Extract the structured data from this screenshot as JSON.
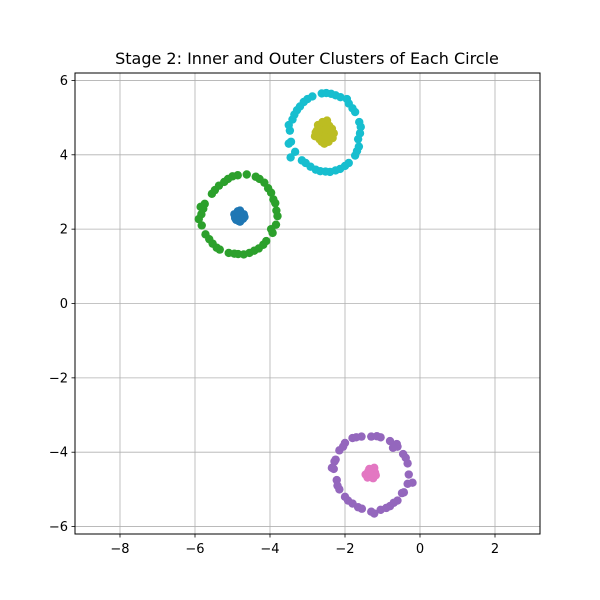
{
  "chart_data": {
    "type": "scatter",
    "title": "Stage 2: Inner and Outer Clusters of Each Circle",
    "xlabel": "",
    "ylabel": "",
    "xlim": [
      -9.2,
      3.2
    ],
    "ylim": [
      -6.2,
      6.2
    ],
    "xticks": [
      -8,
      -6,
      -4,
      -2,
      0,
      2
    ],
    "yticks": [
      -6,
      -4,
      -2,
      0,
      2,
      4,
      6
    ],
    "xtick_labels": [
      "−8",
      "−6",
      "−4",
      "−2",
      "0",
      "2"
    ],
    "ytick_labels": [
      "−6",
      "−4",
      "−2",
      "0",
      "2",
      "4",
      "6"
    ],
    "grid": true,
    "legend": "none",
    "series": [
      {
        "color": "#1f77b4",
        "points": [
          [
            -4.85,
            2.35
          ],
          [
            -4.8,
            2.5
          ],
          [
            -4.75,
            2.3
          ],
          [
            -4.9,
            2.25
          ],
          [
            -4.7,
            2.4
          ],
          [
            -4.95,
            2.4
          ],
          [
            -4.8,
            2.2
          ],
          [
            -4.85,
            2.45
          ],
          [
            -4.72,
            2.28
          ],
          [
            -4.88,
            2.32
          ],
          [
            -4.78,
            2.42
          ],
          [
            -4.9,
            2.38
          ],
          [
            -4.82,
            2.27
          ],
          [
            -4.75,
            2.36
          ],
          [
            -4.86,
            2.48
          ],
          [
            -4.93,
            2.3
          ],
          [
            -4.68,
            2.33
          ],
          [
            -4.8,
            2.38
          ],
          [
            -4.77,
            2.25
          ],
          [
            -4.84,
            2.22
          ]
        ]
      },
      {
        "color": "#2ca02c",
        "points": [
          [
            -3.8,
            2.35
          ],
          [
            -3.86,
            2.7
          ],
          [
            -3.97,
            2.98
          ],
          [
            -4.15,
            3.25
          ],
          [
            -4.38,
            3.41
          ],
          [
            -4.62,
            3.47
          ],
          [
            -4.86,
            3.45
          ],
          [
            -5.12,
            3.35
          ],
          [
            -5.36,
            3.17
          ],
          [
            -5.55,
            2.95
          ],
          [
            -5.74,
            2.68
          ],
          [
            -5.83,
            2.4
          ],
          [
            -5.82,
            2.1
          ],
          [
            -5.72,
            1.86
          ],
          [
            -5.53,
            1.61
          ],
          [
            -5.34,
            1.45
          ],
          [
            -5.1,
            1.36
          ],
          [
            -4.85,
            1.33
          ],
          [
            -4.55,
            1.36
          ],
          [
            -4.3,
            1.48
          ],
          [
            -4.1,
            1.68
          ],
          [
            -3.93,
            1.9
          ],
          [
            -3.84,
            2.12
          ],
          [
            -3.91,
            2.8
          ],
          [
            -4.28,
            3.35
          ],
          [
            -5.0,
            3.42
          ],
          [
            -5.47,
            3.05
          ],
          [
            -5.78,
            2.55
          ],
          [
            -5.9,
            2.27
          ],
          [
            -5.62,
            1.73
          ],
          [
            -4.7,
            1.32
          ],
          [
            -4.18,
            1.58
          ],
          [
            -3.97,
            2.0
          ],
          [
            -4.05,
            3.1
          ],
          [
            -5.22,
            3.27
          ],
          [
            -5.85,
            2.6
          ],
          [
            -5.42,
            1.5
          ],
          [
            -4.42,
            1.42
          ],
          [
            -3.83,
            2.5
          ],
          [
            -4.95,
            1.34
          ]
        ]
      },
      {
        "color": "#17becf",
        "points": [
          [
            -1.6,
            4.58
          ],
          [
            -1.62,
            4.88
          ],
          [
            -1.73,
            5.15
          ],
          [
            -1.9,
            5.38
          ],
          [
            -2.12,
            5.55
          ],
          [
            -2.37,
            5.64
          ],
          [
            -2.62,
            5.65
          ],
          [
            -2.87,
            5.57
          ],
          [
            -3.1,
            5.42
          ],
          [
            -3.28,
            5.2
          ],
          [
            -3.4,
            4.95
          ],
          [
            -3.47,
            4.65
          ],
          [
            -3.44,
            4.35
          ],
          [
            -3.33,
            4.08
          ],
          [
            -3.15,
            3.85
          ],
          [
            -2.92,
            3.68
          ],
          [
            -2.66,
            3.56
          ],
          [
            -2.4,
            3.54
          ],
          [
            -2.13,
            3.62
          ],
          [
            -1.9,
            3.78
          ],
          [
            -1.73,
            3.98
          ],
          [
            -1.63,
            4.22
          ],
          [
            -1.65,
            4.42
          ],
          [
            -1.58,
            4.75
          ],
          [
            -1.8,
            5.25
          ],
          [
            -2.25,
            5.6
          ],
          [
            -2.5,
            5.66
          ],
          [
            -3.0,
            5.5
          ],
          [
            -3.35,
            5.08
          ],
          [
            -3.5,
            4.8
          ],
          [
            -3.5,
            4.3
          ],
          [
            -3.45,
            3.93
          ],
          [
            -3.05,
            3.78
          ],
          [
            -2.78,
            3.6
          ],
          [
            -2.52,
            3.55
          ],
          [
            -2.25,
            3.58
          ],
          [
            -2.0,
            3.7
          ],
          [
            -1.68,
            4.1
          ],
          [
            -1.95,
            5.5
          ],
          [
            -3.2,
            5.3
          ]
        ]
      },
      {
        "color": "#bcbd22",
        "points": [
          [
            -2.5,
            4.6
          ],
          [
            -2.6,
            4.75
          ],
          [
            -2.4,
            4.5
          ],
          [
            -2.7,
            4.55
          ],
          [
            -2.35,
            4.7
          ],
          [
            -2.55,
            4.85
          ],
          [
            -2.75,
            4.65
          ],
          [
            -2.45,
            4.4
          ],
          [
            -2.62,
            4.35
          ],
          [
            -2.3,
            4.58
          ],
          [
            -2.48,
            4.92
          ],
          [
            -2.8,
            4.5
          ],
          [
            -2.58,
            4.62
          ],
          [
            -2.42,
            4.78
          ],
          [
            -2.68,
            4.42
          ],
          [
            -2.52,
            4.52
          ],
          [
            -2.38,
            4.63
          ],
          [
            -2.65,
            4.7
          ],
          [
            -2.55,
            4.3
          ],
          [
            -2.72,
            4.8
          ],
          [
            -2.33,
            4.45
          ],
          [
            -2.6,
            4.88
          ],
          [
            -2.5,
            4.68
          ],
          [
            -2.44,
            4.35
          ],
          [
            -2.78,
            4.6
          ]
        ]
      },
      {
        "color": "#9467bd",
        "points": [
          [
            -0.3,
            -4.6
          ],
          [
            -0.33,
            -4.3
          ],
          [
            -0.45,
            -4.05
          ],
          [
            -0.6,
            -3.85
          ],
          [
            -0.8,
            -3.7
          ],
          [
            -1.05,
            -3.6
          ],
          [
            -1.3,
            -3.58
          ],
          [
            -1.56,
            -3.58
          ],
          [
            -1.8,
            -3.62
          ],
          [
            -2.0,
            -3.75
          ],
          [
            -2.15,
            -3.95
          ],
          [
            -2.25,
            -4.2
          ],
          [
            -2.3,
            -4.45
          ],
          [
            -2.22,
            -4.75
          ],
          [
            -2.15,
            -5.0
          ],
          [
            -2.0,
            -5.2
          ],
          [
            -1.8,
            -5.38
          ],
          [
            -1.55,
            -5.52
          ],
          [
            -1.3,
            -5.6
          ],
          [
            -1.05,
            -5.55
          ],
          [
            -0.8,
            -5.45
          ],
          [
            -0.6,
            -5.3
          ],
          [
            -0.43,
            -5.08
          ],
          [
            -0.33,
            -4.85
          ],
          [
            -0.2,
            -4.82
          ],
          [
            -0.62,
            -3.78
          ],
          [
            -1.15,
            -3.57
          ],
          [
            -1.7,
            -3.6
          ],
          [
            -2.05,
            -3.85
          ],
          [
            -2.28,
            -4.25
          ],
          [
            -2.35,
            -4.42
          ],
          [
            -2.2,
            -4.9
          ],
          [
            -1.92,
            -5.3
          ],
          [
            -1.65,
            -5.48
          ],
          [
            -1.22,
            -5.65
          ],
          [
            -0.9,
            -5.5
          ],
          [
            -0.7,
            -5.36
          ],
          [
            -0.48,
            -5.1
          ],
          [
            -0.72,
            -3.88
          ],
          [
            -0.38,
            -4.15
          ]
        ]
      },
      {
        "color": "#e377c2",
        "points": [
          [
            -1.3,
            -4.6
          ],
          [
            -1.35,
            -4.45
          ],
          [
            -1.2,
            -4.55
          ],
          [
            -1.45,
            -4.6
          ],
          [
            -1.25,
            -4.7
          ],
          [
            -1.38,
            -4.52
          ],
          [
            -1.22,
            -4.42
          ],
          [
            -1.32,
            -4.65
          ],
          [
            -1.4,
            -4.68
          ],
          [
            -1.28,
            -4.5
          ],
          [
            -1.18,
            -4.62
          ],
          [
            -1.35,
            -4.58
          ]
        ]
      }
    ]
  }
}
